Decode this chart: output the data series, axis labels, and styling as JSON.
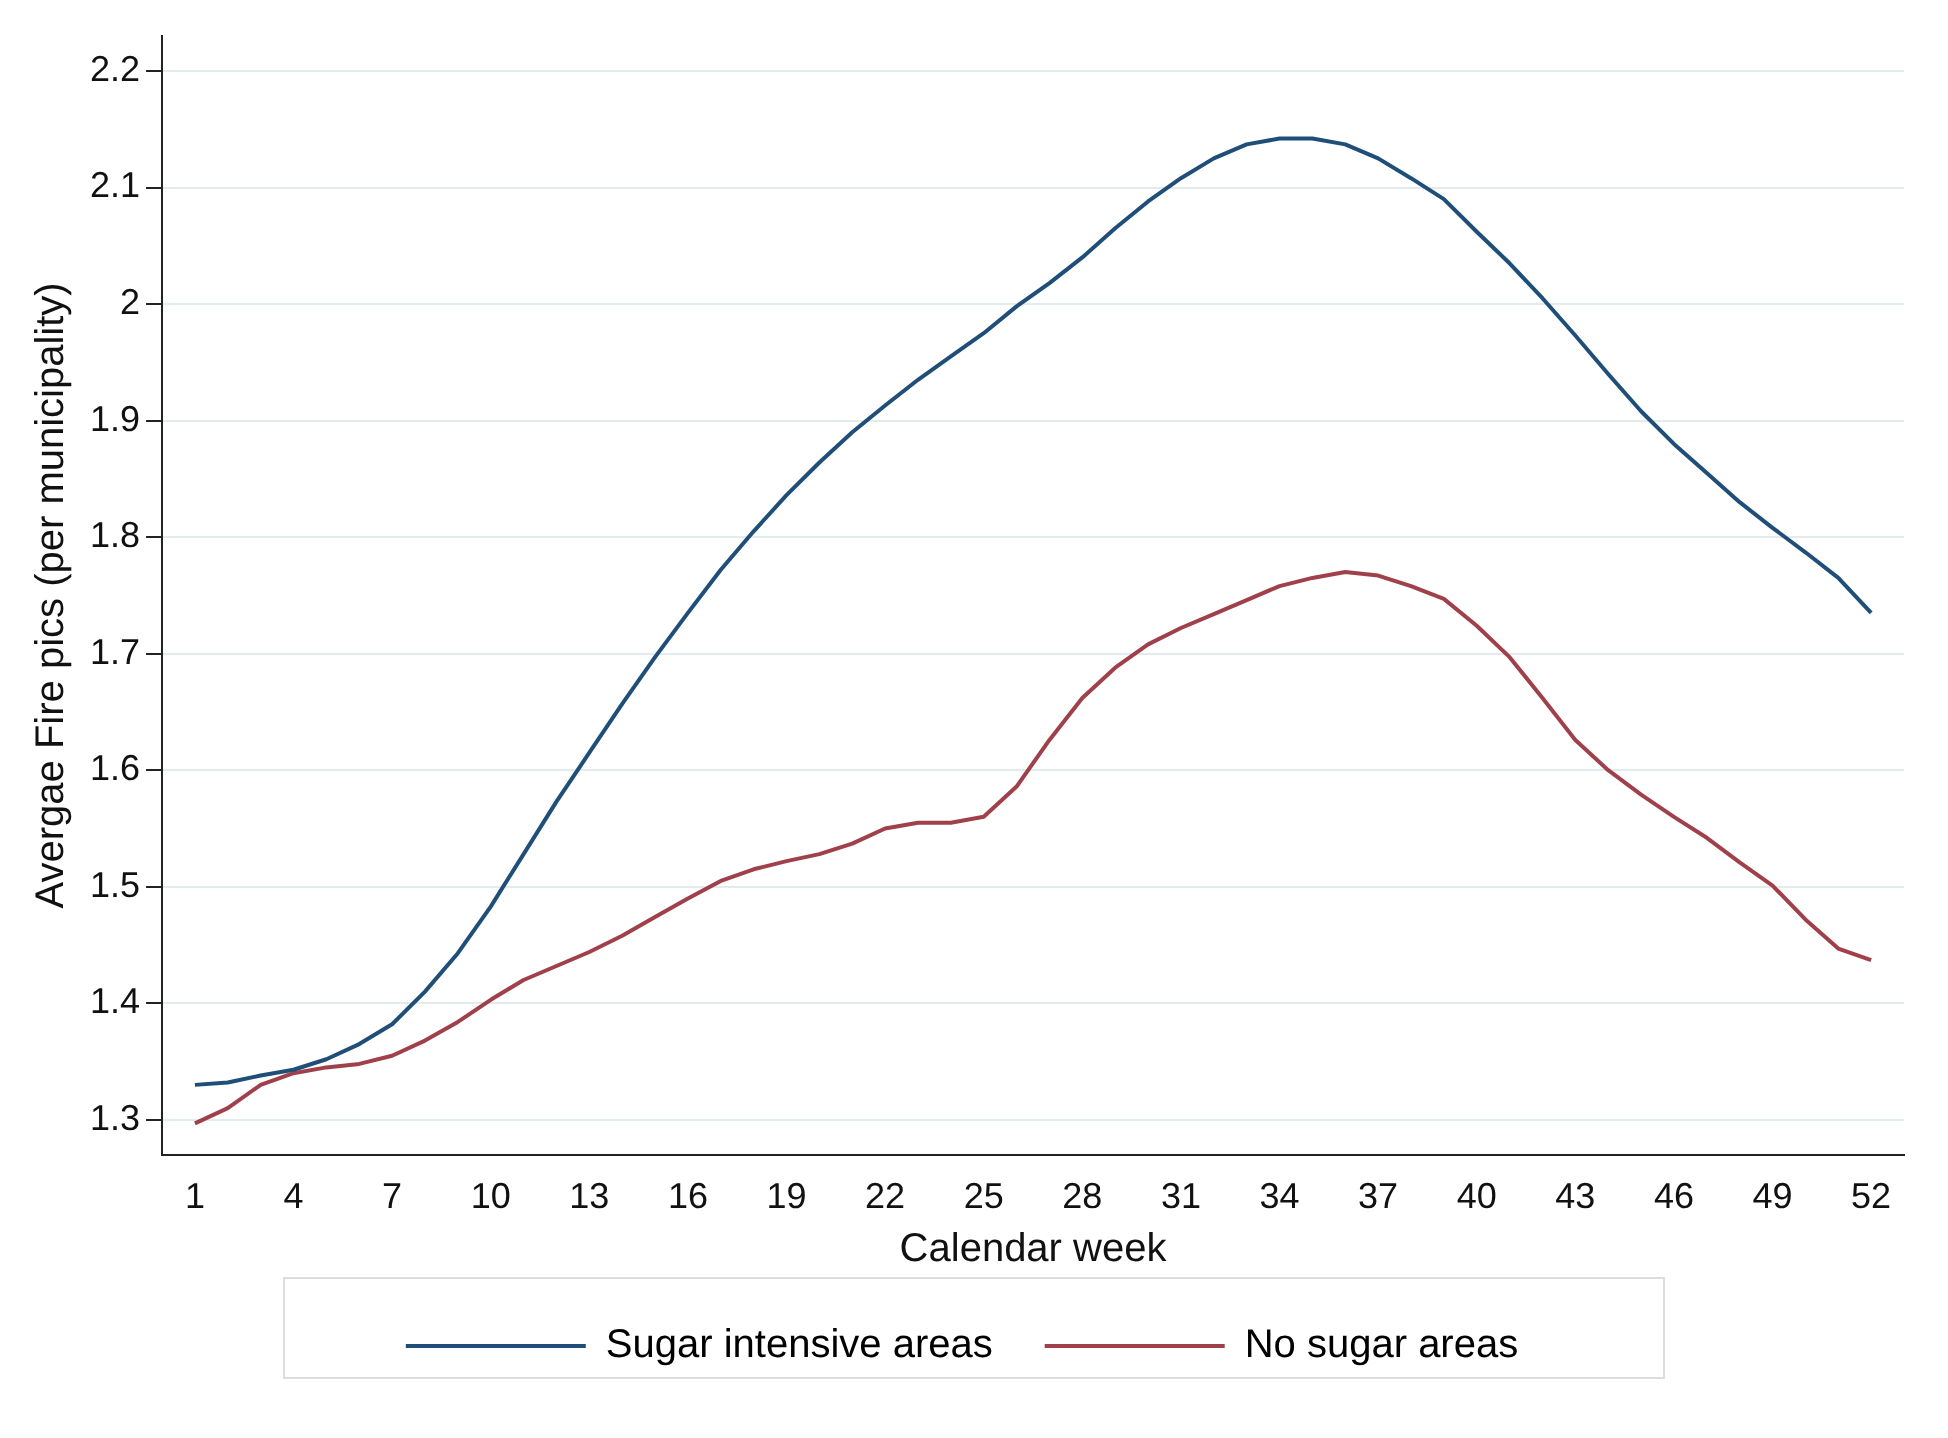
{
  "chart_data": {
    "type": "line",
    "xlabel": "Calendar week",
    "ylabel": "Avergae Fire pics (per municipality)",
    "x": [
      1,
      2,
      3,
      4,
      5,
      6,
      7,
      8,
      9,
      10,
      11,
      12,
      13,
      14,
      15,
      16,
      17,
      18,
      19,
      20,
      21,
      22,
      23,
      24,
      25,
      26,
      27,
      28,
      29,
      30,
      31,
      32,
      33,
      34,
      35,
      36,
      37,
      38,
      39,
      40,
      41,
      42,
      43,
      44,
      45,
      46,
      47,
      48,
      49,
      50,
      51,
      52
    ],
    "series": [
      {
        "name": "Sugar intensive areas",
        "color": "#1f4e79",
        "values": [
          1.33,
          1.332,
          1.338,
          1.343,
          1.352,
          1.365,
          1.382,
          1.41,
          1.443,
          1.483,
          1.528,
          1.573,
          1.615,
          1.657,
          1.697,
          1.735,
          1.772,
          1.805,
          1.836,
          1.864,
          1.89,
          1.913,
          1.935,
          1.955,
          1.975,
          1.998,
          2.018,
          2.04,
          2.065,
          2.088,
          2.108,
          2.125,
          2.137,
          2.142,
          2.142,
          2.137,
          2.125,
          2.108,
          2.09,
          2.062,
          2.035,
          2.005,
          1.973,
          1.94,
          1.908,
          1.88,
          1.855,
          1.83,
          1.808,
          1.787,
          1.765,
          1.735
        ]
      },
      {
        "name": "No sugar areas",
        "color": "#a0404a",
        "values": [
          1.297,
          1.31,
          1.33,
          1.34,
          1.345,
          1.348,
          1.355,
          1.368,
          1.384,
          1.403,
          1.42,
          1.432,
          1.444,
          1.458,
          1.474,
          1.49,
          1.505,
          1.515,
          1.522,
          1.528,
          1.537,
          1.55,
          1.555,
          1.555,
          1.56,
          1.586,
          1.626,
          1.662,
          1.688,
          1.708,
          1.722,
          1.734,
          1.746,
          1.758,
          1.765,
          1.77,
          1.767,
          1.758,
          1.747,
          1.724,
          1.697,
          1.662,
          1.626,
          1.6,
          1.579,
          1.56,
          1.542,
          1.521,
          1.501,
          1.472,
          1.447,
          1.437
        ]
      }
    ],
    "xlim": [
      0,
      53
    ],
    "xticks": [
      1,
      4,
      7,
      10,
      13,
      16,
      19,
      22,
      25,
      28,
      31,
      34,
      37,
      40,
      43,
      46,
      49,
      52
    ],
    "ylim": [
      1.27,
      2.23
    ],
    "yticks": [
      1.3,
      1.4,
      1.5,
      1.6,
      1.7,
      1.8,
      1.9,
      2,
      2.1,
      2.2
    ],
    "grid": "y",
    "legend": "bottom",
    "marker": "none",
    "line_style": "solid"
  }
}
